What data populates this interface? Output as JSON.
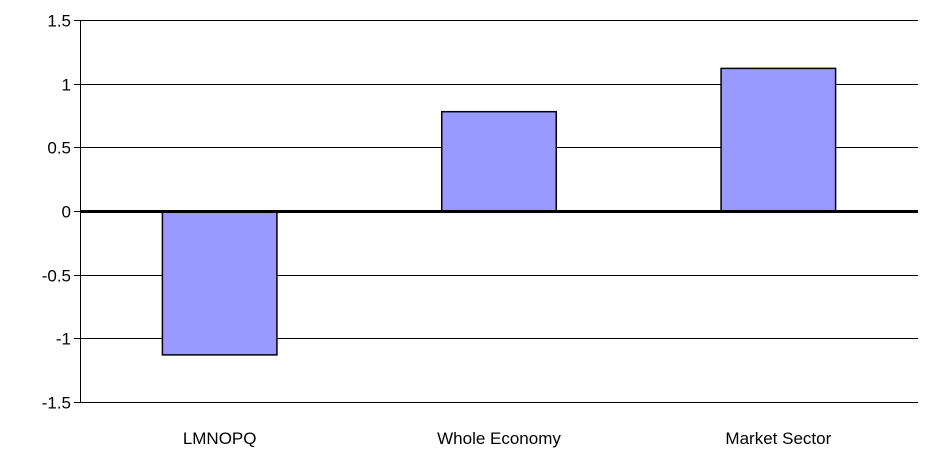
{
  "chart_data": {
    "type": "bar",
    "categories": [
      "LMNOPQ",
      "Whole Economy",
      "Market Sector"
    ],
    "values": [
      -1.13,
      0.78,
      1.12
    ],
    "ylim": [
      -1.5,
      1.5
    ],
    "yticks": [
      1.5,
      1,
      0.5,
      0,
      -0.5,
      -1,
      -1.5
    ],
    "ytick_labels": [
      "1.5",
      "1",
      "0.5",
      "0",
      "-0.5",
      "-1",
      "-1.5"
    ],
    "grid": true,
    "title": "",
    "xlabel": "",
    "ylabel": "",
    "colors": {
      "bar_fill": "#9999ff",
      "bar_stroke": "#000000",
      "grid": "#000000",
      "zero_line": "#000000"
    }
  }
}
